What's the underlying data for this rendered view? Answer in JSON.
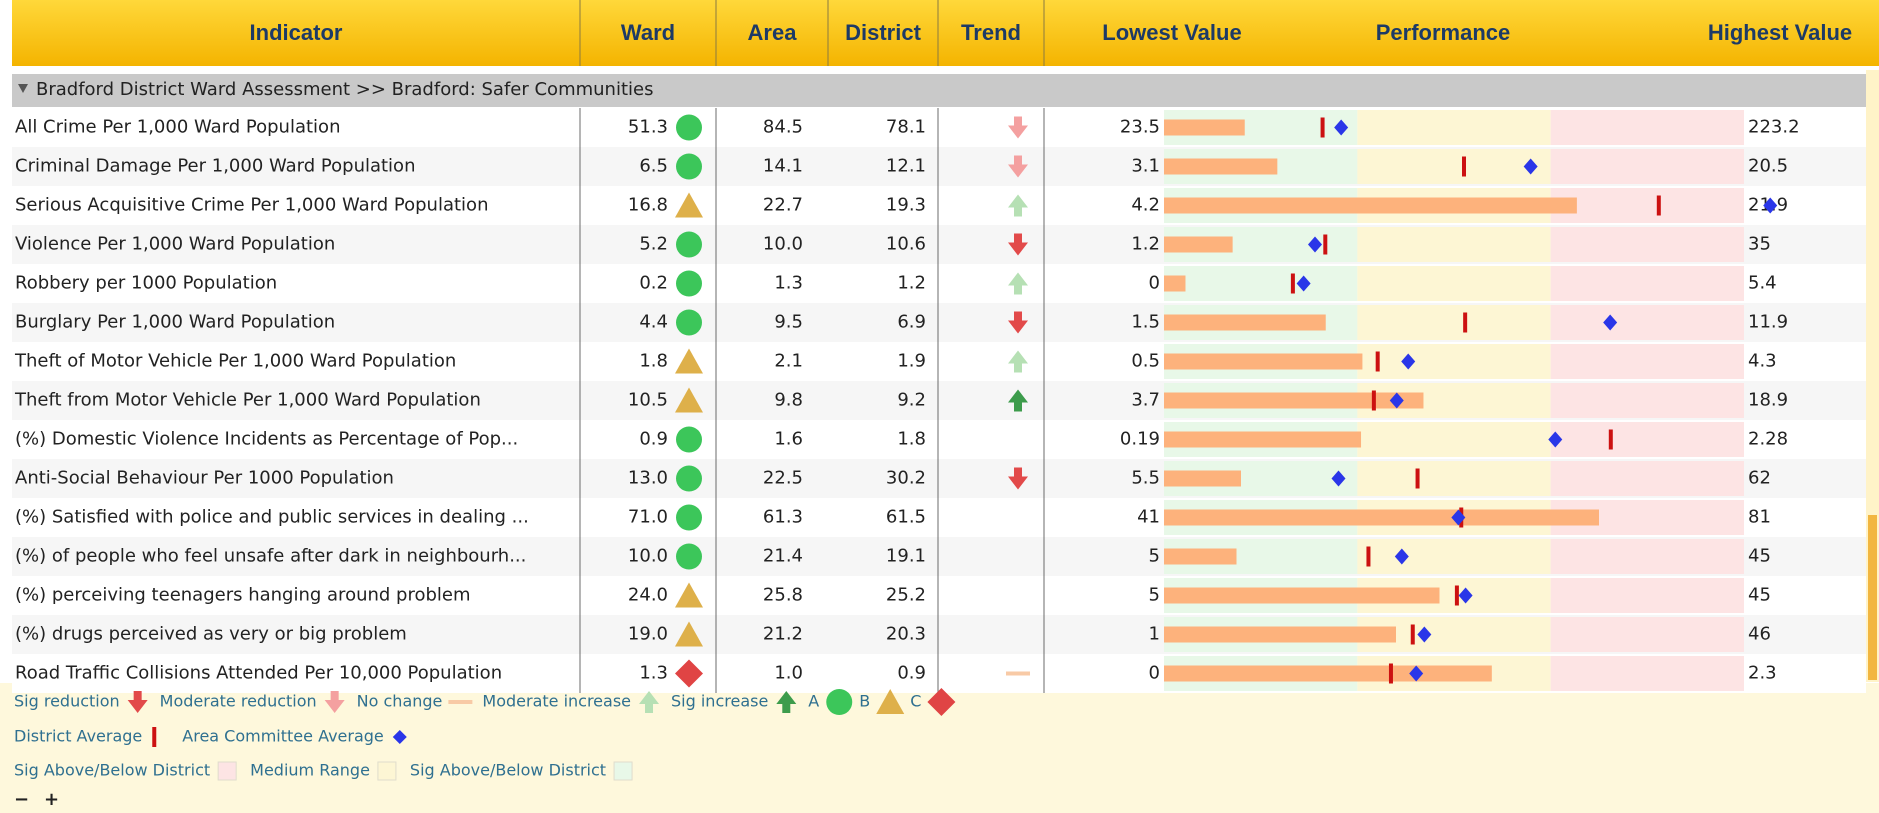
{
  "header": {
    "columns": [
      "Indicator",
      "Ward",
      "Area",
      "District",
      "Trend",
      "Lowest Value",
      "Performance",
      "Highest Value"
    ]
  },
  "section": "Bradford District Ward Assessment >> Bradford: Safer Communities",
  "rows": [
    {
      "indicator": "All Crime Per 1,000 Ward Population",
      "ward": "51.3",
      "rating": "A",
      "area": "84.5",
      "district": "78.1",
      "trend": "Moderate reduction",
      "lowest": "23.5",
      "highest": "223.2"
    },
    {
      "indicator": "Criminal Damage Per 1,000 Ward Population",
      "ward": "6.5",
      "rating": "A",
      "area": "14.1",
      "district": "12.1",
      "trend": "Moderate reduction",
      "lowest": "3.1",
      "highest": "20.5"
    },
    {
      "indicator": "Serious Acquisitive Crime Per 1,000 Ward Population",
      "ward": "16.8",
      "rating": "B",
      "area": "22.7",
      "district": "19.3",
      "trend": "Moderate increase",
      "lowest": "4.2",
      "highest": "21.9"
    },
    {
      "indicator": "Violence Per 1,000 Ward Population",
      "ward": "5.2",
      "rating": "A",
      "area": "10.0",
      "district": "10.6",
      "trend": "Sig reduction",
      "lowest": "1.2",
      "highest": "35"
    },
    {
      "indicator": "Robbery per 1000 Population",
      "ward": "0.2",
      "rating": "A",
      "area": "1.3",
      "district": "1.2",
      "trend": "Moderate increase",
      "lowest": "0",
      "highest": "5.4"
    },
    {
      "indicator": "Burglary Per 1,000 Ward Population",
      "ward": "4.4",
      "rating": "A",
      "area": "9.5",
      "district": "6.9",
      "trend": "Sig reduction",
      "lowest": "1.5",
      "highest": "11.9"
    },
    {
      "indicator": "Theft of Motor Vehicle Per 1,000 Ward Population",
      "ward": "1.8",
      "rating": "B",
      "area": "2.1",
      "district": "1.9",
      "trend": "Moderate increase",
      "lowest": "0.5",
      "highest": "4.3"
    },
    {
      "indicator": "Theft from Motor Vehicle Per 1,000 Ward Population",
      "ward": "10.5",
      "rating": "B",
      "area": "9.8",
      "district": "9.2",
      "trend": "Sig increase",
      "lowest": "3.7",
      "highest": "18.9"
    },
    {
      "indicator": "(%) Domestic Violence Incidents as Percentage of Pop...",
      "ward": "0.9",
      "rating": "A",
      "area": "1.6",
      "district": "1.8",
      "trend": null,
      "lowest": "0.19",
      "highest": "2.28"
    },
    {
      "indicator": "Anti-Social Behaviour Per 1000 Population",
      "ward": "13.0",
      "rating": "A",
      "area": "22.5",
      "district": "30.2",
      "trend": "Sig reduction",
      "lowest": "5.5",
      "highest": "62"
    },
    {
      "indicator": "(%) Satisfied with police and public services in dealing ...",
      "ward": "71.0",
      "rating": "A",
      "area": "61.3",
      "district": "61.5",
      "trend": null,
      "lowest": "41",
      "highest": "81"
    },
    {
      "indicator": "(%) of people who feel unsafe after dark in neighbourh...",
      "ward": "10.0",
      "rating": "A",
      "area": "21.4",
      "district": "19.1",
      "trend": null,
      "lowest": "5",
      "highest": "45"
    },
    {
      "indicator": "(%) perceiving teenagers hanging around problem",
      "ward": "24.0",
      "rating": "B",
      "area": "25.8",
      "district": "25.2",
      "trend": null,
      "lowest": "5",
      "highest": "45"
    },
    {
      "indicator": "(%) drugs perceived as very or big problem",
      "ward": "19.0",
      "rating": "B",
      "area": "21.2",
      "district": "20.3",
      "trend": null,
      "lowest": "1",
      "highest": "46"
    },
    {
      "indicator": "Road Traffic Collisions Attended Per 10,000 Population",
      "ward": "1.3",
      "rating": "C",
      "area": "1.0",
      "district": "0.9",
      "trend": "No change",
      "lowest": "0",
      "highest": "2.3"
    }
  ],
  "legend": {
    "trend": [
      "Sig reduction",
      "Moderate reduction",
      "No change",
      "Moderate increase",
      "Sig increase"
    ],
    "rating": [
      "A",
      "B",
      "C"
    ],
    "markers": [
      "District Average",
      "Area Committee Average"
    ],
    "zones": [
      "Sig Above/Below District",
      "Medium Range",
      "Sig Above/Below District"
    ]
  }
}
